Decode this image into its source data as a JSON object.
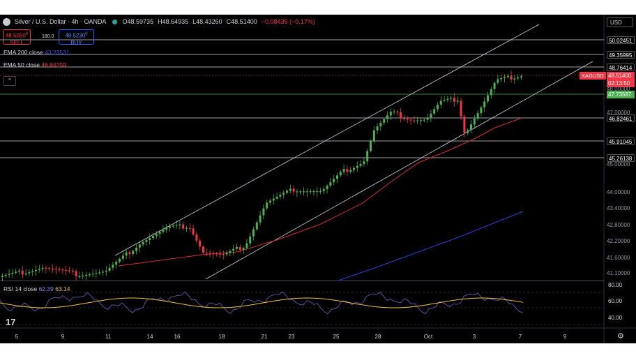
{
  "header": {
    "title": "Silver / U.S. Dollar · 4h · OANDA",
    "open": "O48.59735",
    "high": "H48.64935",
    "low": "L48.43260",
    "close": "C48.51400",
    "change": "−0.08435 (−0.17%)"
  },
  "trade": {
    "sell_price": "48.5050",
    "sell_sup": "0",
    "sell_label": "SELL",
    "spread": "180.0",
    "buy_price": "48.5230",
    "buy_sup": "0",
    "buy_label": "BUY"
  },
  "legend": {
    "ema200_label": "EMA 200 close",
    "ema200_value": "43.23531",
    "ema50_label": "EMA 50 close",
    "ema50_value": "46.84259",
    "collapse_icon": "^"
  },
  "currency": "USD",
  "symbol_tag": "XAGUSD",
  "price_axis": {
    "tags": [
      "50.02451",
      "49.35995",
      "48.76414",
      "46.82461",
      "45.91045",
      "45.26138"
    ],
    "current": "48.51400",
    "countdown": "02:13:50",
    "green_tag": "47.73587",
    "labels": [
      "48.00000",
      "47.00000",
      "45.00000",
      "44.00000",
      "43.40000",
      "42.80000",
      "42.20000",
      "41.60000",
      "41.10000"
    ]
  },
  "x_axis": {
    "labels": [
      "5",
      "9",
      "11",
      "14",
      "16",
      "18",
      "21",
      "23",
      "25",
      "28",
      "Oct",
      "3",
      "7",
      "9"
    ]
  },
  "rsi": {
    "label": "RSI 14 close",
    "value1": "62.39",
    "value2": "63.14",
    "axis": [
      "80.00",
      "60.00",
      "40.00"
    ]
  },
  "logo": "17",
  "colors": {
    "up": "#4caf50",
    "down": "#f23645",
    "ema50": "#d32f2f",
    "ema200": "#2f3fd6",
    "rsi": "#7e57c2",
    "rsi_ma": "#e6c34b"
  },
  "icons": {
    "settings": "gear-icon",
    "symbol": "silver-coin-icon"
  }
}
